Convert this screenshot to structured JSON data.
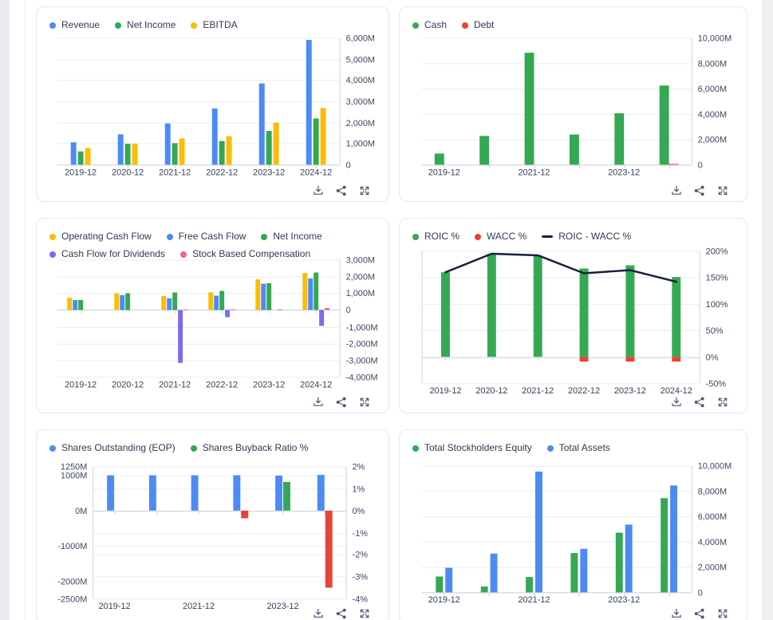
{
  "colors": {
    "blue": "#4c8bf5",
    "green": "#34a853",
    "yellow": "#fbbc04",
    "red": "#ea4335",
    "purple": "#8069f1",
    "pink": "#f0609e",
    "line_navy": "#16213f",
    "text": "#333f54",
    "icon": "#4a5570"
  },
  "chart_data": [
    {
      "type": "bar",
      "categories": [
        "2019-12",
        "2020-12",
        "2021-12",
        "2022-12",
        "2023-12",
        "2024-12"
      ],
      "x_label_indices": [
        0,
        1,
        2,
        3,
        4,
        5
      ],
      "y_right": {
        "min": 0,
        "max": 6000,
        "ticks": [
          0,
          1000,
          2000,
          3000,
          4000,
          5000,
          6000
        ],
        "format": "commaM"
      },
      "series": [
        {
          "name": "Revenue",
          "kind": "bar",
          "color": "#4c8bf5",
          "values": [
            1060,
            1440,
            1950,
            2660,
            3850,
            5910
          ]
        },
        {
          "name": "Net Income",
          "kind": "bar",
          "color": "#34a853",
          "values": [
            630,
            990,
            1020,
            1120,
            1600,
            2190
          ]
        },
        {
          "name": "EBITDA",
          "kind": "bar",
          "color": "#fbbc04",
          "values": [
            790,
            1000,
            1250,
            1350,
            1990,
            2690
          ]
        }
      ]
    },
    {
      "type": "bar",
      "categories": [
        "2019-12",
        "2020-12",
        "2021-12",
        "2022-12",
        "2023-12",
        "2024-12"
      ],
      "x_label_indices": [
        0,
        2,
        4
      ],
      "y_right": {
        "min": 0,
        "max": 10000,
        "ticks": [
          0,
          2000,
          4000,
          6000,
          8000,
          10000
        ],
        "format": "commaM"
      },
      "series": [
        {
          "name": "Cash",
          "kind": "bar",
          "color": "#34a853",
          "values": [
            880,
            2270,
            8840,
            2380,
            4060,
            6250
          ]
        },
        {
          "name": "Debt",
          "kind": "bar",
          "color": "#ea4335",
          "values": [
            0,
            0,
            0,
            0,
            0,
            60
          ]
        }
      ]
    },
    {
      "type": "bar",
      "categories": [
        "2019-12",
        "2020-12",
        "2021-12",
        "2022-12",
        "2023-12",
        "2024-12"
      ],
      "x_label_indices": [
        0,
        1,
        2,
        3,
        4,
        5
      ],
      "y_right": {
        "min": -4000,
        "max": 3000,
        "ticks": [
          -4000,
          -3000,
          -2000,
          -1000,
          0,
          1000,
          2000,
          3000
        ],
        "format": "commaM"
      },
      "series": [
        {
          "name": "Operating Cash Flow",
          "kind": "bar",
          "color": "#fbbc04",
          "values": [
            730,
            1000,
            840,
            1050,
            1830,
            2210
          ]
        },
        {
          "name": "Free Cash Flow",
          "kind": "bar",
          "color": "#4c8bf5",
          "values": [
            590,
            890,
            700,
            860,
            1570,
            1890
          ]
        },
        {
          "name": "Net Income",
          "kind": "bar",
          "color": "#34a853",
          "values": [
            600,
            1000,
            1050,
            1140,
            1600,
            2240
          ]
        },
        {
          "name": "Cash Flow for Dividends",
          "kind": "bar",
          "color": "#8069f1",
          "values": [
            0,
            0,
            -3160,
            -430,
            0,
            -950
          ]
        },
        {
          "name": "Stock Based Compensation",
          "kind": "bar",
          "color": "#f0609e",
          "values": [
            0,
            0,
            30,
            40,
            40,
            120
          ]
        }
      ]
    },
    {
      "type": "bar+line",
      "categories": [
        "2019-12",
        "2020-12",
        "2021-12",
        "2022-12",
        "2023-12",
        "2024-12"
      ],
      "x_label_indices": [
        0,
        1,
        2,
        3,
        4,
        5
      ],
      "y_right": {
        "min": -50,
        "max": 200,
        "ticks": [
          -50,
          0,
          50,
          100,
          150,
          200
        ],
        "format": "pct"
      },
      "series": [
        {
          "name": "ROIC %",
          "kind": "bar",
          "color": "#34a853",
          "values": [
            160,
            195,
            192,
            167,
            173,
            151
          ]
        },
        {
          "name": "WACC %",
          "kind": "bar",
          "color": "#ea4335",
          "values": [
            0,
            0,
            0,
            -9,
            -9,
            -9
          ]
        },
        {
          "name": "ROIC - WACC %",
          "kind": "line",
          "color": "#16213f",
          "values": [
            160,
            195,
            192,
            158,
            164,
            142
          ]
        }
      ]
    },
    {
      "type": "bar",
      "categories": [
        "2019-12",
        "2020-12",
        "2021-12",
        "2022-12",
        "2023-12",
        "2024-12"
      ],
      "x_label_indices": [
        0,
        2,
        4
      ],
      "y_left": {
        "min": -2500,
        "max": 1250,
        "ticks": [
          1250,
          1000,
          0,
          -1000,
          -2000,
          -2500
        ],
        "format": "plainM"
      },
      "y_right": {
        "min": -4,
        "max": 2,
        "ticks": [
          2,
          1,
          0,
          -1,
          -2,
          -3,
          -4
        ],
        "format": "pct"
      },
      "series": [
        {
          "name": "Shares Outstanding (EOP)",
          "kind": "bar",
          "axis": "left",
          "color": "#4c8bf5",
          "values": [
            1000,
            1000,
            1000,
            1000,
            990,
            1010
          ]
        },
        {
          "name": "Shares Buyback Ratio %",
          "kind": "bar",
          "axis": "right",
          "color": "#34a853",
          "neg_color": "#ea4335",
          "values": [
            0,
            0,
            0,
            -0.35,
            1.3,
            -3.5
          ]
        }
      ]
    },
    {
      "type": "bar",
      "categories": [
        "2019-12",
        "2020-12",
        "2021-12",
        "2022-12",
        "2023-12",
        "2024-12"
      ],
      "x_label_indices": [
        0,
        2,
        4
      ],
      "y_right": {
        "min": 0,
        "max": 10000,
        "ticks": [
          0,
          2000,
          4000,
          6000,
          8000,
          10000
        ],
        "format": "commaM"
      },
      "series": [
        {
          "name": "Total Stockholders Equity",
          "kind": "bar",
          "color": "#34a853",
          "values": [
            1250,
            460,
            1210,
            3100,
            4710,
            7440
          ]
        },
        {
          "name": "Total Assets",
          "kind": "bar",
          "color": "#4c8bf5",
          "values": [
            1940,
            3060,
            9540,
            3440,
            5350,
            8440
          ]
        }
      ]
    }
  ]
}
